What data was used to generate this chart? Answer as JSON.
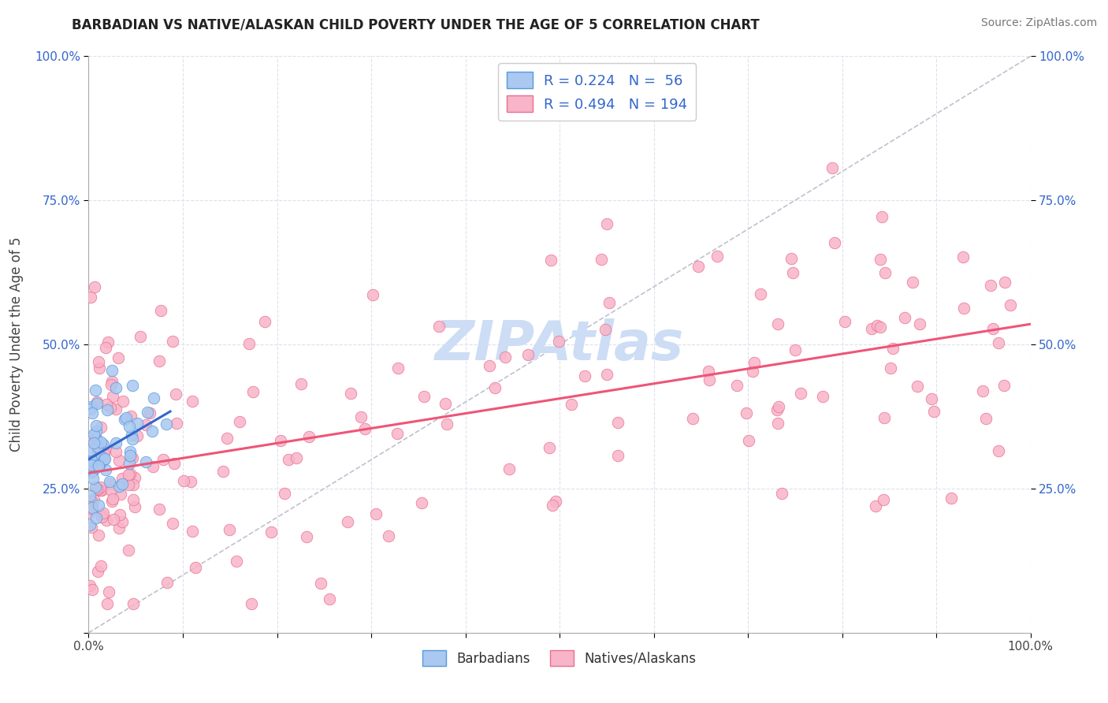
{
  "title": "BARBADIAN VS NATIVE/ALASKAN CHILD POVERTY UNDER THE AGE OF 5 CORRELATION CHART",
  "source": "Source: ZipAtlas.com",
  "ylabel": "Child Poverty Under the Age of 5",
  "xlim": [
    0.0,
    1.0
  ],
  "ylim": [
    0.0,
    1.0
  ],
  "barbadian_color": "#aac8f0",
  "barbadian_edge": "#5599dd",
  "native_color": "#f8b4c8",
  "native_edge": "#e87090",
  "barbadian_R": 0.224,
  "barbadian_N": 56,
  "native_R": 0.494,
  "native_N": 194,
  "legend_color": "#3366cc",
  "trend_blue_color": "#3366cc",
  "trend_pink_color": "#ee5577",
  "diagonal_color": "#c0c0d0",
  "watermark_color": "#ccddf5",
  "background_color": "#ffffff",
  "grid_color": "#e0e0ee"
}
